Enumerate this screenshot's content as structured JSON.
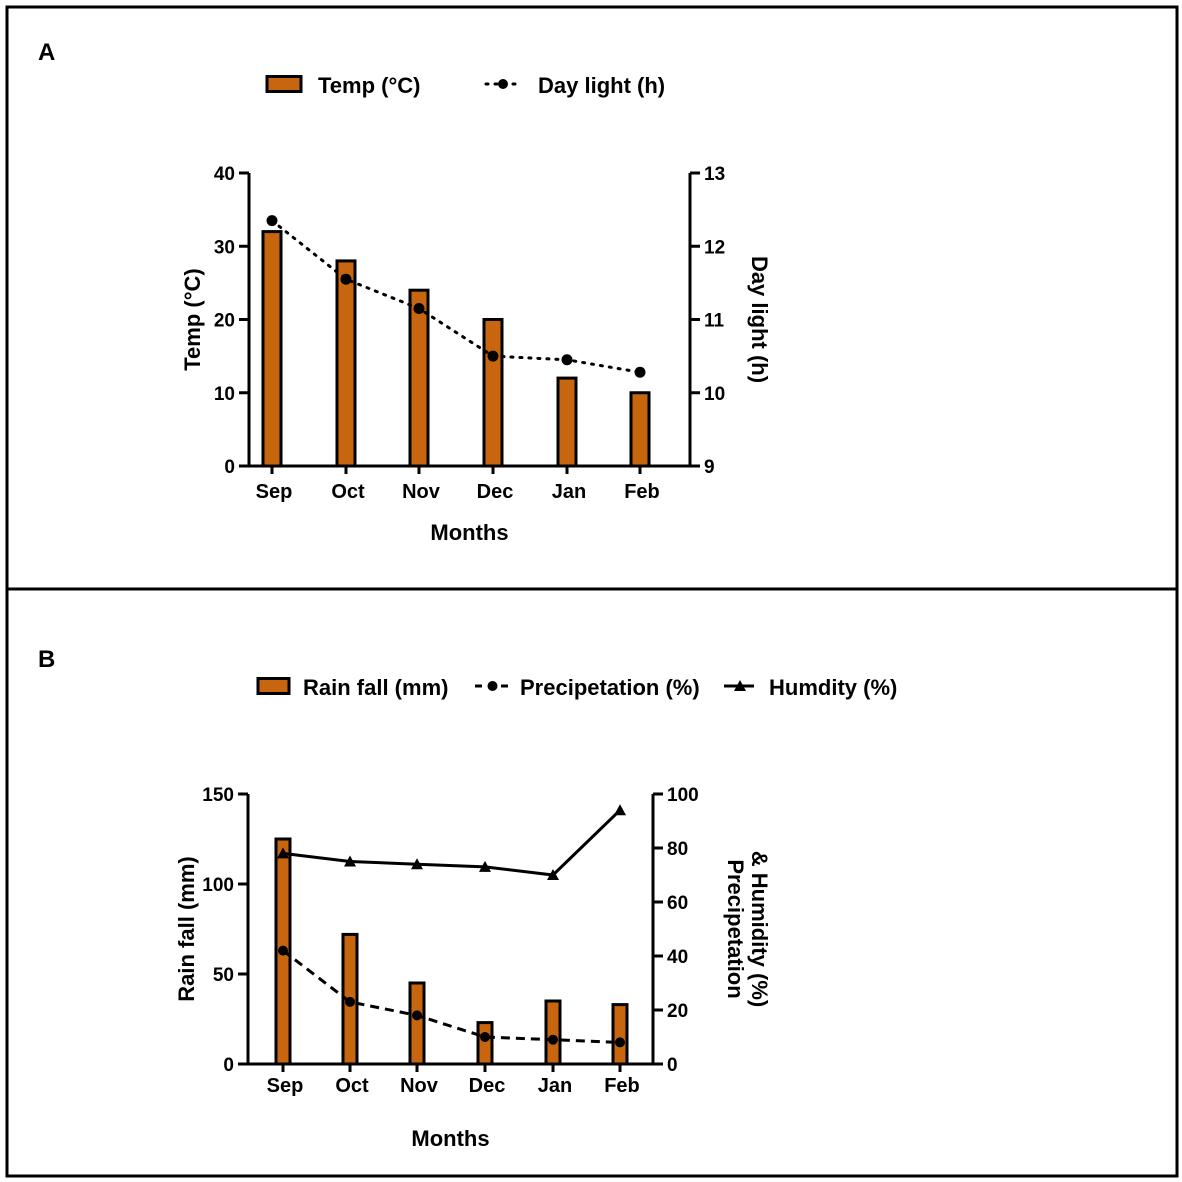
{
  "colors": {
    "bar_fill": "#C8660F",
    "stroke": "#000000",
    "background": "#FFFFFF"
  },
  "chart_data": [
    {
      "panel_label": "A",
      "type": "bar+line",
      "categories": [
        "Sep",
        "Oct",
        "Nov",
        "Dec",
        "Jan",
        "Feb"
      ],
      "xlabel": "Months",
      "ylabel": "Temp (°C)",
      "y2label": "Day light (h)",
      "ylim": [
        0,
        40
      ],
      "yticks": [
        0,
        10,
        20,
        30,
        40
      ],
      "y2lim": [
        9,
        13
      ],
      "y2ticks": [
        9,
        10,
        11,
        12,
        13
      ],
      "series": [
        {
          "name": "Temp (°C)",
          "type": "bar",
          "axis": "left",
          "values": [
            32,
            28,
            24,
            20,
            12,
            10
          ]
        },
        {
          "name": "Day light (h)",
          "type": "line",
          "style": "dotted",
          "marker": "circle",
          "axis": "right",
          "values": [
            12.35,
            11.55,
            11.15,
            10.5,
            10.45,
            10.28
          ]
        }
      ]
    },
    {
      "panel_label": "B",
      "type": "bar+line",
      "categories": [
        "Sep",
        "Oct",
        "Nov",
        "Dec",
        "Jan",
        "Feb"
      ],
      "xlabel": "Months",
      "ylabel": "Rain fall (mm)",
      "y2label": [
        "Precipetation",
        "& Humidity (%)"
      ],
      "ylim": [
        0,
        150
      ],
      "yticks": [
        0,
        50,
        100,
        150
      ],
      "y2lim": [
        0,
        100
      ],
      "y2ticks": [
        0,
        20,
        40,
        60,
        80,
        100
      ],
      "series": [
        {
          "name": "Rain fall (mm)",
          "type": "bar",
          "axis": "left",
          "values": [
            125,
            72,
            45,
            23,
            35,
            33
          ]
        },
        {
          "name": "Precipetation (%)",
          "type": "line",
          "style": "dashed",
          "marker": "circle",
          "axis": "right",
          "values": [
            42,
            23,
            18,
            10,
            9,
            8
          ]
        },
        {
          "name": "Humdity (%)",
          "type": "line",
          "style": "solid",
          "marker": "triangle",
          "axis": "right",
          "values": [
            78,
            75,
            74,
            73,
            70,
            94
          ]
        }
      ]
    }
  ]
}
